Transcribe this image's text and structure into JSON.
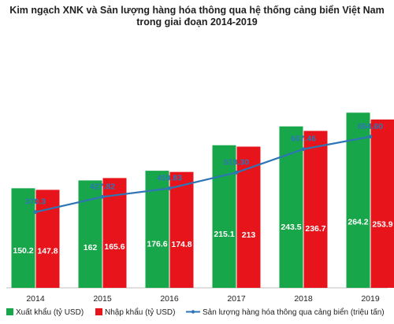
{
  "title_line1": "Kim ngạch XNK và Sản lượng hàng hóa thông qua hệ thống cảng biển Việt Nam",
  "title_line2": "trong giai đoạn 2014-2019",
  "colors": {
    "export": "#18a64a",
    "import": "#e8141b",
    "line": "#2e75b6"
  },
  "chart_data": {
    "type": "bar",
    "categories": [
      "2014",
      "2015",
      "2016",
      "2017",
      "2018",
      "2019"
    ],
    "series": [
      {
        "name": "Xuất khẩu (tỷ USD)",
        "type": "bar",
        "values": [
          150.2,
          162,
          176.6,
          215.1,
          243.5,
          264.2
        ]
      },
      {
        "name": "Nhập khẩu (tỷ USD)",
        "type": "bar",
        "values": [
          147.8,
          165.6,
          174.8,
          213,
          236.7,
          253.9
        ]
      },
      {
        "name": "Sản lượng hàng hóa thông qua cảng biển (triệu tấn)",
        "type": "line",
        "values": [
          370.3,
          427.82,
          459.83,
          519.3,
          607.46,
          654.6
        ]
      }
    ],
    "value_labels": {
      "export": [
        "150.2",
        "162",
        "176.6",
        "215.1",
        "243.5",
        "264.2"
      ],
      "import": [
        "147.8",
        "165.6",
        "174.8",
        "213",
        "236.7",
        "253.9"
      ],
      "line": [
        "370.3",
        "427.82",
        "459.83",
        "519.30",
        "607.46",
        "654.60"
      ]
    },
    "bar_ylim": [
      0,
      300
    ],
    "line_ylim": [
      0,
      700
    ],
    "legend_position": "bottom",
    "grid": false
  }
}
